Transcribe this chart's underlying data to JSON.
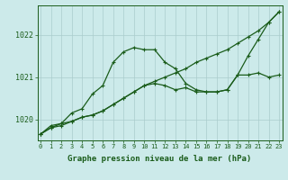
{
  "title": "Graphe pression niveau de la mer (hPa)",
  "yticks": [
    1020,
    1021,
    1022
  ],
  "ylim": [
    1019.5,
    1022.7
  ],
  "xlim": [
    -0.3,
    23.3
  ],
  "bg_color": "#cceaea",
  "grid_color": "#aacccc",
  "line_color": "#1a5c1a",
  "line1_x": [
    0,
    1,
    2,
    3,
    4,
    5,
    6,
    7,
    8,
    9,
    10,
    11,
    12,
    13,
    14,
    15,
    16,
    17,
    18,
    19,
    20,
    21,
    22,
    23
  ],
  "line1_y": [
    1019.65,
    1019.85,
    1019.9,
    1020.15,
    1020.25,
    1020.6,
    1020.8,
    1021.35,
    1021.6,
    1021.7,
    1021.65,
    1021.65,
    1021.35,
    1021.2,
    1020.85,
    1020.7,
    1020.65,
    1020.65,
    1020.7,
    1021.05,
    1021.5,
    1021.9,
    1022.3,
    1022.55
  ],
  "line2_x": [
    0,
    1,
    2,
    3,
    4,
    5,
    6,
    7,
    8,
    9,
    10,
    11,
    12,
    13,
    14,
    15,
    16,
    17,
    18,
    19,
    20,
    21,
    22,
    23
  ],
  "line2_y": [
    1019.65,
    1019.8,
    1019.85,
    1019.95,
    1020.05,
    1020.1,
    1020.2,
    1020.35,
    1020.5,
    1020.65,
    1020.8,
    1020.9,
    1021.0,
    1021.1,
    1021.2,
    1021.35,
    1021.45,
    1021.55,
    1021.65,
    1021.8,
    1021.95,
    1022.1,
    1022.3,
    1022.55
  ],
  "line3_x": [
    0,
    1,
    2,
    3,
    4,
    5,
    6,
    7,
    8,
    9,
    10,
    11,
    12,
    13,
    14,
    15,
    16,
    17,
    18,
    19,
    20,
    21,
    22,
    23
  ],
  "line3_y": [
    1019.65,
    1019.8,
    1019.9,
    1019.95,
    1020.05,
    1020.1,
    1020.2,
    1020.35,
    1020.5,
    1020.65,
    1020.8,
    1020.85,
    1020.8,
    1020.7,
    1020.75,
    1020.65,
    1020.65,
    1020.65,
    1020.7,
    1021.05,
    1021.05,
    1021.1,
    1021.0,
    1021.05
  ],
  "marker_style": "+",
  "marker_size": 3.5,
  "line_width": 0.9,
  "font_size_tick": 6,
  "title_fontsize": 6.5
}
